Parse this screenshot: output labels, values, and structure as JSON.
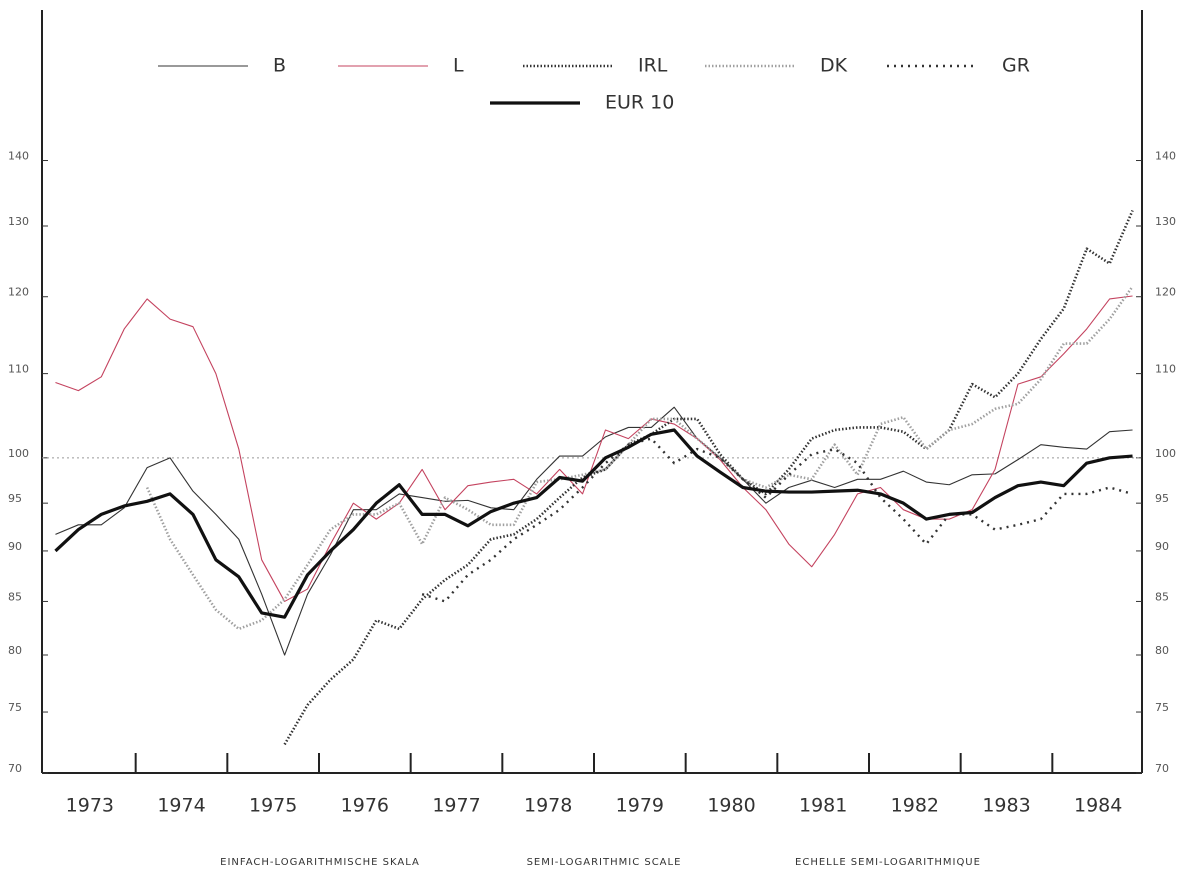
{
  "chart_data": {
    "type": "line",
    "log_scale": true,
    "reference_line": 100,
    "footer": [
      "EINFACH-LOGARITHMISCHE SKALA",
      "SEMI-LOGARITHMIC SCALE",
      "ECHELLE SEMI-LOGARITHMIQUE"
    ],
    "x": [
      1973.125,
      1973.375,
      1973.625,
      1973.875,
      1974.125,
      1974.375,
      1974.625,
      1974.875,
      1975.125,
      1975.375,
      1975.625,
      1975.875,
      1976.125,
      1976.375,
      1976.625,
      1976.875,
      1977.125,
      1977.375,
      1977.625,
      1977.875,
      1978.125,
      1978.375,
      1978.625,
      1978.875,
      1979.125,
      1979.375,
      1979.625,
      1979.875,
      1980.125,
      1980.375,
      1980.625,
      1980.875,
      1981.125,
      1981.375,
      1981.625,
      1981.875,
      1982.125,
      1982.375,
      1982.625,
      1982.875,
      1983.125,
      1983.375,
      1983.625,
      1983.875,
      1984.125,
      1984.375,
      1984.625,
      1984.875
    ],
    "xlim": [
      1973,
      1985
    ],
    "xticks": [
      {
        "value": 1973.5,
        "label": "1973"
      },
      {
        "value": 1974.5,
        "label": "1974"
      },
      {
        "value": 1975.5,
        "label": "1975"
      },
      {
        "value": 1976.5,
        "label": "1976"
      },
      {
        "value": 1977.5,
        "label": "1977"
      },
      {
        "value": 1978.5,
        "label": "1978"
      },
      {
        "value": 1979.5,
        "label": "1979"
      },
      {
        "value": 1980.5,
        "label": "1980"
      },
      {
        "value": 1981.5,
        "label": "1981"
      },
      {
        "value": 1982.5,
        "label": "1982"
      },
      {
        "value": 1983.5,
        "label": "1983"
      },
      {
        "value": 1984.5,
        "label": "1984"
      }
    ],
    "ylim": [
      70,
      166
    ],
    "yticks": [
      70,
      75,
      80,
      85,
      90,
      95,
      100,
      110,
      120,
      130,
      140
    ],
    "series": [
      {
        "name": "B",
        "color": "#333333",
        "style": "thin",
        "values": [
          91.7,
          92.7,
          92.7,
          94.5,
          98.9,
          100,
          96.3,
          93.8,
          91.2,
          85.7,
          80.0,
          85.7,
          89.6,
          94.3,
          94.3,
          96.0,
          95.6,
          95.2,
          95.3,
          94.5,
          94.3,
          97.6,
          100.2,
          100.2,
          102.4,
          103.5,
          103.5,
          105.9,
          102.2,
          100,
          97.6,
          95.0,
          96.7,
          97.5,
          96.7,
          97.6,
          97.6,
          98.5,
          97.3,
          97.0,
          98.1,
          98.2,
          99.8,
          101.5,
          101.2,
          101.0,
          103.0,
          103.2
        ]
      },
      {
        "name": "L",
        "color": "#c4435f",
        "style": "thin",
        "values": [
          108.9,
          107.9,
          109.6,
          115.7,
          119.7,
          117.0,
          116.0,
          110,
          101.0,
          89.1,
          85,
          86.2,
          90.7,
          95.0,
          93.3,
          95.0,
          98.7,
          94.3,
          96.9,
          97.3,
          97.6,
          96.0,
          98.7,
          96.0,
          103.2,
          102.2,
          104.5,
          103.9,
          102.2,
          99.8,
          96.7,
          94.3,
          90.7,
          88.4,
          91.7,
          96.0,
          96.7,
          94.3,
          93.3,
          93.3,
          94.3,
          98.7,
          108.7,
          109.6,
          112.5,
          115.7,
          119.7,
          120.1
        ]
      },
      {
        "name": "IRL",
        "color": "#333333",
        "style": "dotted",
        "values": [
          null,
          null,
          null,
          null,
          null,
          null,
          null,
          null,
          null,
          null,
          72.3,
          75.6,
          77.8,
          79.6,
          83.2,
          82.4,
          85.2,
          87.1,
          88.6,
          91.2,
          91.7,
          93.3,
          95.6,
          97.8,
          98.7,
          101.5,
          102.7,
          104.5,
          104.5,
          100.4,
          97.6,
          96.0,
          98.7,
          102.2,
          103.2,
          103.5,
          103.5,
          103.0,
          101.0,
          103.2,
          108.7,
          107.1,
          110,
          114.4,
          118.4,
          126.7,
          124.6,
          132.3
        ]
      },
      {
        "name": "DK",
        "color": "#a0a0a0",
        "style": "dotted",
        "values": [
          null,
          null,
          null,
          null,
          96.7,
          91.2,
          87.6,
          84.2,
          82.4,
          83.2,
          85.2,
          88.6,
          92.2,
          93.8,
          93.8,
          95.0,
          90.7,
          95.6,
          94.3,
          92.7,
          92.7,
          97.3,
          97.6,
          98.1,
          98.7,
          101.5,
          104.5,
          104.5,
          102.2,
          100,
          97.6,
          96.7,
          98.1,
          97.6,
          101.5,
          98.1,
          103.9,
          104.7,
          101.0,
          103.2,
          103.9,
          105.7,
          106.3,
          109.3,
          113.8,
          113.8,
          117.0,
          121.4
        ]
      },
      {
        "name": "GR",
        "color": "#333333",
        "style": "crossed",
        "values": [
          null,
          null,
          null,
          null,
          null,
          null,
          null,
          null,
          null,
          null,
          null,
          null,
          null,
          null,
          null,
          null,
          85.7,
          85,
          87.6,
          89.1,
          91.2,
          92.7,
          94.3,
          96.7,
          99.4,
          101.5,
          102.2,
          99.4,
          101.0,
          100,
          97.6,
          95.6,
          98.1,
          100.4,
          101.0,
          99.4,
          95.6,
          93.3,
          90.7,
          93.8,
          93.8,
          92.2,
          92.7,
          93.3,
          96.0,
          96.0,
          96.7,
          96.0
        ]
      },
      {
        "name": "EUR 10",
        "color": "#111111",
        "style": "thick",
        "values": [
          90,
          92.2,
          93.8,
          94.7,
          95.2,
          96.0,
          93.8,
          89.1,
          87.4,
          83.9,
          83.5,
          87.6,
          90.0,
          92.2,
          95.0,
          97.0,
          93.8,
          93.8,
          92.6,
          94.1,
          95.0,
          95.6,
          97.8,
          97.4,
          100,
          101.2,
          102.7,
          103.2,
          100.2,
          98.4,
          96.7,
          96.3,
          96.2,
          96.2,
          96.3,
          96.4,
          96.0,
          95.0,
          93.3,
          93.8,
          94.0,
          95.6,
          96.9,
          97.3,
          96.9,
          99.4,
          100,
          100.2
        ]
      }
    ]
  }
}
